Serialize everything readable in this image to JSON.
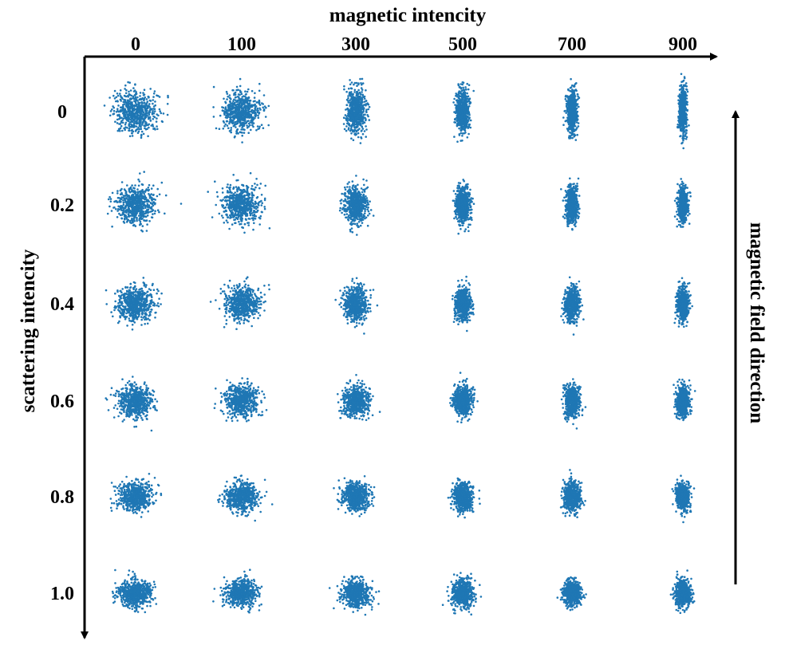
{
  "chart_data": {
    "type": "scatter",
    "title": "",
    "xlabel": "magnetic intencity",
    "ylabel": "scattering intencity",
    "right_arrow_label": "magnetic field direction",
    "x_categories": [
      "0",
      "100",
      "300",
      "500",
      "700",
      "900"
    ],
    "y_categories": [
      "0",
      "0.2",
      "0.4",
      "0.6",
      "0.8",
      "1.0"
    ],
    "grid": false,
    "marker_color": "#1f77b4",
    "cluster_spread": [
      [
        [
          1.0,
          1.0
        ],
        [
          0.95,
          0.97
        ],
        [
          0.48,
          1.0
        ],
        [
          0.32,
          1.05
        ],
        [
          0.24,
          1.05
        ],
        [
          0.19,
          1.1
        ]
      ],
      [
        [
          0.95,
          0.92
        ],
        [
          0.92,
          0.9
        ],
        [
          0.52,
          0.85
        ],
        [
          0.36,
          0.85
        ],
        [
          0.28,
          0.85
        ],
        [
          0.24,
          0.85
        ]
      ],
      [
        [
          0.88,
          0.85
        ],
        [
          0.85,
          0.85
        ],
        [
          0.6,
          0.8
        ],
        [
          0.4,
          0.8
        ],
        [
          0.34,
          0.82
        ],
        [
          0.28,
          0.78
        ]
      ],
      [
        [
          0.85,
          0.75
        ],
        [
          0.82,
          0.75
        ],
        [
          0.65,
          0.72
        ],
        [
          0.45,
          0.72
        ],
        [
          0.36,
          0.74
        ],
        [
          0.32,
          0.72
        ]
      ],
      [
        [
          0.82,
          0.72
        ],
        [
          0.8,
          0.7
        ],
        [
          0.65,
          0.68
        ],
        [
          0.46,
          0.68
        ],
        [
          0.4,
          0.68
        ],
        [
          0.34,
          0.68
        ]
      ],
      [
        [
          0.78,
          0.68
        ],
        [
          0.78,
          0.65
        ],
        [
          0.68,
          0.65
        ],
        [
          0.5,
          0.65
        ],
        [
          0.42,
          0.64
        ],
        [
          0.36,
          0.65
        ]
      ]
    ]
  }
}
